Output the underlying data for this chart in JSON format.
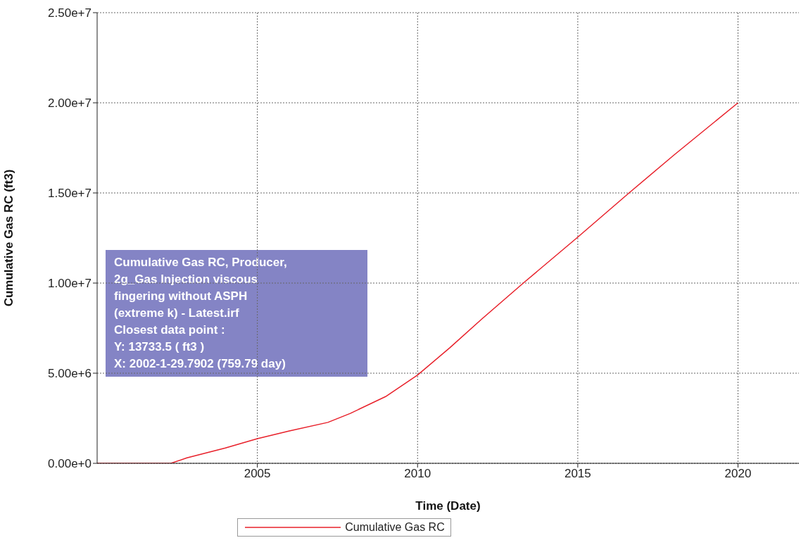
{
  "chart_data": {
    "type": "line",
    "xlabel": "Time (Date)",
    "ylabel": "Cumulative Gas RC (ft3)",
    "x": [
      2000,
      2002.3,
      2002.8,
      2004,
      2005,
      2006,
      2007.2,
      2007.9,
      2009,
      2010,
      2011,
      2012,
      2013.3,
      2015,
      2016.6,
      2018,
      2020
    ],
    "series": [
      {
        "name": "Cumulative Gas RC",
        "color": "#e8202a",
        "values": [
          0,
          0,
          300000,
          850000,
          1370000,
          1800000,
          2270000,
          2770000,
          3700000,
          4900000,
          6400000,
          8000000,
          10000000,
          12550000,
          15000000,
          17100000,
          20000000
        ]
      }
    ],
    "xlim": [
      2000,
      2021.9
    ],
    "xticks": [
      2005,
      2010,
      2015,
      2020
    ],
    "ylim": [
      0,
      25000000
    ],
    "yticks": [
      {
        "value": 0,
        "label": "0.00e+0"
      },
      {
        "value": 5000000,
        "label": "5.00e+6"
      },
      {
        "value": 10000000,
        "label": "1.00e+7"
      },
      {
        "value": 15000000,
        "label": "1.50e+7"
      },
      {
        "value": 20000000,
        "label": "2.00e+7"
      },
      {
        "value": 25000000,
        "label": "2.50e+7"
      }
    ],
    "grid": true,
    "legend": "bottom",
    "marker": "none",
    "line_style": "solid",
    "annotations": [
      "Cumulative Gas RC, Producer,\n2g_Gas Injection viscous\nfingering without ASPH\n(extreme k) - Latest.irf\nClosest data point :\nY: 13733.5 ( ft3 )\nX:  2002-1-29.7902 (759.79 day)"
    ]
  }
}
